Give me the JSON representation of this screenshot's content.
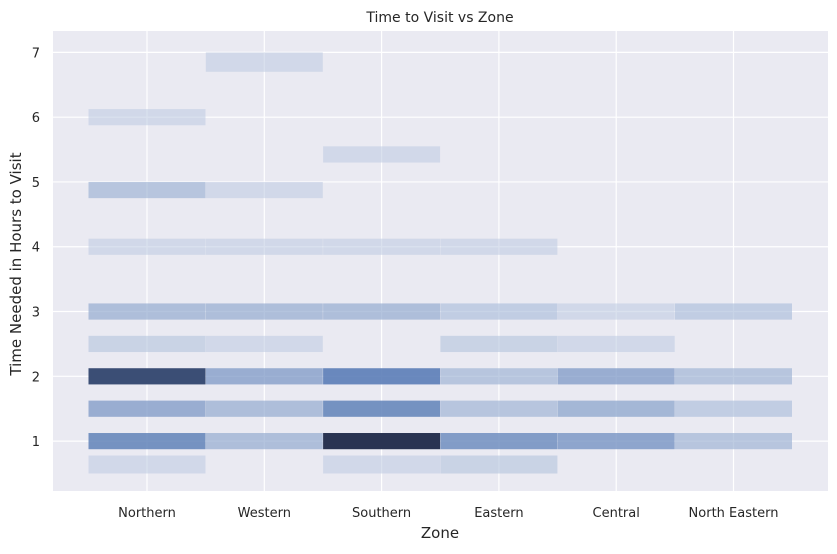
{
  "chart_data": {
    "type": "heatmap",
    "title": "Time to Visit vs Zone",
    "xlabel": "Zone",
    "ylabel": "Time Needed in Hours to Visit",
    "categories": [
      "Northern",
      "Western",
      "Southern",
      "Eastern",
      "Central",
      "North Eastern"
    ],
    "yticks": [
      1,
      2,
      3,
      4,
      5,
      6,
      7
    ],
    "ylim": [
      0.23,
      7.33
    ],
    "grid": true,
    "base_color": "#4c72b0",
    "background_color": "#eaeaf2",
    "bin_edges": [
      0.5,
      0.778,
      0.875,
      1.125,
      1.375,
      1.625,
      1.875,
      2.125,
      2.375,
      2.625,
      2.875,
      3.125,
      3.875,
      4.125,
      4.75,
      5.0,
      5.3,
      5.55,
      5.875,
      6.125,
      6.7,
      7.0
    ],
    "cells": [
      {
        "zone": "Northern",
        "y0": 0.5,
        "y1": 0.778,
        "level": 0.3
      },
      {
        "zone": "Northern",
        "y0": 0.875,
        "y1": 1.125,
        "level": 0.75
      },
      {
        "zone": "Northern",
        "y0": 1.375,
        "y1": 1.625,
        "level": 0.6
      },
      {
        "zone": "Northern",
        "y0": 1.875,
        "y1": 2.125,
        "level": 0.95
      },
      {
        "zone": "Northern",
        "y0": 2.375,
        "y1": 2.625,
        "level": 0.35
      },
      {
        "zone": "Northern",
        "y0": 2.875,
        "y1": 3.125,
        "level": 0.5
      },
      {
        "zone": "Northern",
        "y0": 3.875,
        "y1": 4.125,
        "level": 0.3
      },
      {
        "zone": "Northern",
        "y0": 4.75,
        "y1": 5.0,
        "level": 0.45
      },
      {
        "zone": "Northern",
        "y0": 5.875,
        "y1": 6.125,
        "level": 0.3
      },
      {
        "zone": "Western",
        "y0": 0.875,
        "y1": 1.125,
        "level": 0.5
      },
      {
        "zone": "Western",
        "y0": 1.375,
        "y1": 1.625,
        "level": 0.5
      },
      {
        "zone": "Western",
        "y0": 1.875,
        "y1": 2.125,
        "level": 0.6
      },
      {
        "zone": "Western",
        "y0": 2.375,
        "y1": 2.625,
        "level": 0.3
      },
      {
        "zone": "Western",
        "y0": 2.875,
        "y1": 3.125,
        "level": 0.5
      },
      {
        "zone": "Western",
        "y0": 3.875,
        "y1": 4.125,
        "level": 0.3
      },
      {
        "zone": "Western",
        "y0": 4.75,
        "y1": 5.0,
        "level": 0.3
      },
      {
        "zone": "Western",
        "y0": 6.7,
        "y1": 7.0,
        "level": 0.3
      },
      {
        "zone": "Southern",
        "y0": 0.5,
        "y1": 0.778,
        "level": 0.3
      },
      {
        "zone": "Southern",
        "y0": 0.875,
        "y1": 1.125,
        "level": 1.0
      },
      {
        "zone": "Southern",
        "y0": 1.375,
        "y1": 1.625,
        "level": 0.75
      },
      {
        "zone": "Southern",
        "y0": 1.875,
        "y1": 2.125,
        "level": 0.8
      },
      {
        "zone": "Southern",
        "y0": 2.875,
        "y1": 3.125,
        "level": 0.5
      },
      {
        "zone": "Southern",
        "y0": 3.875,
        "y1": 4.125,
        "level": 0.3
      },
      {
        "zone": "Southern",
        "y0": 5.3,
        "y1": 5.55,
        "level": 0.3
      },
      {
        "zone": "Eastern",
        "y0": 0.5,
        "y1": 0.778,
        "level": 0.35
      },
      {
        "zone": "Eastern",
        "y0": 0.875,
        "y1": 1.125,
        "level": 0.7
      },
      {
        "zone": "Eastern",
        "y0": 1.375,
        "y1": 1.625,
        "level": 0.45
      },
      {
        "zone": "Eastern",
        "y0": 1.875,
        "y1": 2.125,
        "level": 0.45
      },
      {
        "zone": "Eastern",
        "y0": 2.375,
        "y1": 2.625,
        "level": 0.35
      },
      {
        "zone": "Eastern",
        "y0": 2.875,
        "y1": 3.125,
        "level": 0.4
      },
      {
        "zone": "Eastern",
        "y0": 3.875,
        "y1": 4.125,
        "level": 0.3
      },
      {
        "zone": "Central",
        "y0": 0.875,
        "y1": 1.125,
        "level": 0.65
      },
      {
        "zone": "Central",
        "y0": 1.375,
        "y1": 1.625,
        "level": 0.55
      },
      {
        "zone": "Central",
        "y0": 1.875,
        "y1": 2.125,
        "level": 0.6
      },
      {
        "zone": "Central",
        "y0": 2.375,
        "y1": 2.625,
        "level": 0.3
      },
      {
        "zone": "Central",
        "y0": 2.875,
        "y1": 3.125,
        "level": 0.3
      },
      {
        "zone": "North Eastern",
        "y0": 0.875,
        "y1": 1.125,
        "level": 0.45
      },
      {
        "zone": "North Eastern",
        "y0": 1.375,
        "y1": 1.625,
        "level": 0.4
      },
      {
        "zone": "North Eastern",
        "y0": 1.875,
        "y1": 2.125,
        "level": 0.45
      },
      {
        "zone": "North Eastern",
        "y0": 2.875,
        "y1": 3.125,
        "level": 0.4
      }
    ]
  }
}
